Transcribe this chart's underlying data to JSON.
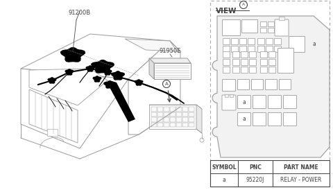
{
  "bg_color": "#ffffff",
  "lc": "#999999",
  "dc": "#444444",
  "label_91200B": "91200B",
  "label_91950E": "91950E",
  "view_label": "VIEW",
  "circle_a": "A",
  "table_headers": [
    "SYMBOL",
    "PNC",
    "PART NAME"
  ],
  "table_row": [
    "a",
    "95220J",
    "RELAY - POWER"
  ]
}
